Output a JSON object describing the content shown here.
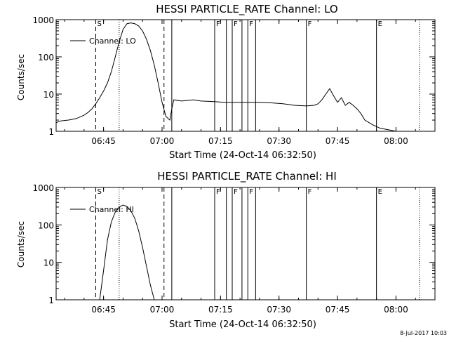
{
  "chart_data": [
    {
      "type": "line",
      "title": "HESSI PARTICLE_RATE Channel: LO",
      "xlabel": "Start Time (24-Oct-14 06:32:50)",
      "ylabel": "Counts/sec",
      "yscale": "log",
      "ylim": [
        1,
        1000
      ],
      "xlim": [
        "06:32:50",
        "08:10:00"
      ],
      "x_ticks": [
        "06:45",
        "07:00",
        "07:15",
        "07:30",
        "07:45",
        "08:00"
      ],
      "y_ticks": [
        "1",
        "10",
        "100",
        "1000"
      ],
      "legend": {
        "entries": [
          "Channel: LO"
        ],
        "placement": "top-left"
      },
      "grid": false,
      "series": [
        {
          "name": "Channel: LO",
          "x": [
            "06:32:50",
            "06:34:00",
            "06:36:00",
            "06:38:00",
            "06:40:00",
            "06:41:00",
            "06:42:00",
            "06:43:00",
            "06:44:00",
            "06:45:00",
            "06:46:00",
            "06:47:00",
            "06:48:00",
            "06:49:00",
            "06:50:00",
            "06:51:00",
            "06:52:00",
            "06:53:00",
            "06:54:00",
            "06:55:00",
            "06:56:00",
            "06:57:00",
            "06:58:00",
            "06:59:00",
            "07:00:00",
            "07:01:00",
            "07:02:00",
            "07:02:30",
            "07:03:00",
            "07:05:00",
            "07:08:00",
            "07:10:00",
            "07:13:00",
            "07:16:00",
            "07:19:00",
            "07:22:00",
            "07:25:00",
            "07:28:00",
            "07:31:00",
            "07:34:00",
            "07:37:00",
            "07:39:00",
            "07:40:00",
            "07:41:00",
            "07:42:00",
            "07:43:00",
            "07:44:00",
            "07:45:00",
            "07:46:00",
            "07:47:00",
            "07:48:00",
            "07:49:00",
            "07:50:00",
            "07:51:00",
            "07:52:00",
            "07:54:00",
            "07:56:00",
            "07:58:00",
            "08:00:00",
            "08:02:00",
            "08:04:00",
            "08:06:00"
          ],
          "y": [
            1.7,
            1.9,
            2.0,
            2.2,
            2.7,
            3.2,
            4.0,
            5.5,
            8,
            12,
            20,
            40,
            100,
            250,
            550,
            780,
            820,
            780,
            680,
            500,
            300,
            150,
            60,
            20,
            6,
            2.5,
            2.0,
            4.0,
            7,
            6.5,
            7,
            6.5,
            6.3,
            6,
            6,
            6,
            6,
            5.8,
            5.5,
            5,
            4.8,
            5,
            5.5,
            7,
            10,
            14,
            9,
            6,
            8,
            5,
            6,
            5,
            4,
            3,
            2,
            1.5,
            1.2,
            1.1,
            1.0,
            1.0,
            1.0,
            1.0
          ]
        }
      ],
      "flag_intervals": [
        {
          "label": "S",
          "start": "06:43:00",
          "end": "07:02:00"
        },
        {
          "label": "F",
          "start": "07:13:30",
          "end": "07:16:30"
        },
        {
          "label": "F",
          "start": "07:18:00",
          "end": "07:20:30"
        },
        {
          "label": "F",
          "start": "07:22:00",
          "end": "07:24:00"
        },
        {
          "label": "F",
          "start": "07:37:00",
          "end": "07:55:00"
        },
        {
          "label": "E",
          "start": "07:55:00",
          "end": "08:10:00"
        }
      ]
    },
    {
      "type": "line",
      "title": "HESSI PARTICLE_RATE Channel: HI",
      "xlabel": "Start Time (24-Oct-14 06:32:50)",
      "ylabel": "Counts/sec",
      "yscale": "log",
      "ylim": [
        1,
        1000
      ],
      "xlim": [
        "06:32:50",
        "08:10:00"
      ],
      "x_ticks": [
        "06:45",
        "07:00",
        "07:15",
        "07:30",
        "07:45",
        "08:00"
      ],
      "y_ticks": [
        "1",
        "10",
        "100",
        "1000"
      ],
      "legend": {
        "entries": [
          "Channel: HI"
        ],
        "placement": "top-left"
      },
      "grid": false,
      "series": [
        {
          "name": "Channel: HI",
          "x": [
            "06:44:00",
            "06:45:00",
            "06:46:00",
            "06:47:00",
            "06:48:00",
            "06:49:00",
            "06:50:00",
            "06:51:00",
            "06:52:00",
            "06:53:00",
            "06:54:00",
            "06:55:00",
            "06:56:00",
            "06:57:00",
            "06:58:00"
          ],
          "y": [
            1.0,
            6,
            40,
            120,
            220,
            300,
            340,
            310,
            240,
            150,
            70,
            25,
            8,
            2.5,
            1.0
          ]
        }
      ],
      "flag_intervals": [
        {
          "label": "S",
          "start": "06:43:00",
          "end": "07:02:00"
        },
        {
          "label": "F",
          "start": "07:13:30",
          "end": "07:16:30"
        },
        {
          "label": "F",
          "start": "07:18:00",
          "end": "07:20:30"
        },
        {
          "label": "F",
          "start": "07:22:00",
          "end": "07:24:00"
        },
        {
          "label": "F",
          "start": "07:37:00",
          "end": "07:55:00"
        },
        {
          "label": "E",
          "start": "07:55:00",
          "end": "08:10:00"
        }
      ]
    }
  ],
  "vertical_markers": {
    "dashed": [
      "06:43:00",
      "07:00:30"
    ],
    "dotted": [
      "06:49:00",
      "08:06:00"
    ],
    "solid": [
      "07:02:30",
      "07:13:30",
      "07:16:30",
      "07:18:00",
      "07:20:30",
      "07:22:00",
      "07:24:00",
      "07:37:00",
      "07:55:00"
    ]
  },
  "timestamp": "8-Jul-2017 10:03",
  "colors": {
    "background": "#ffffff",
    "foreground": "#000000"
  }
}
